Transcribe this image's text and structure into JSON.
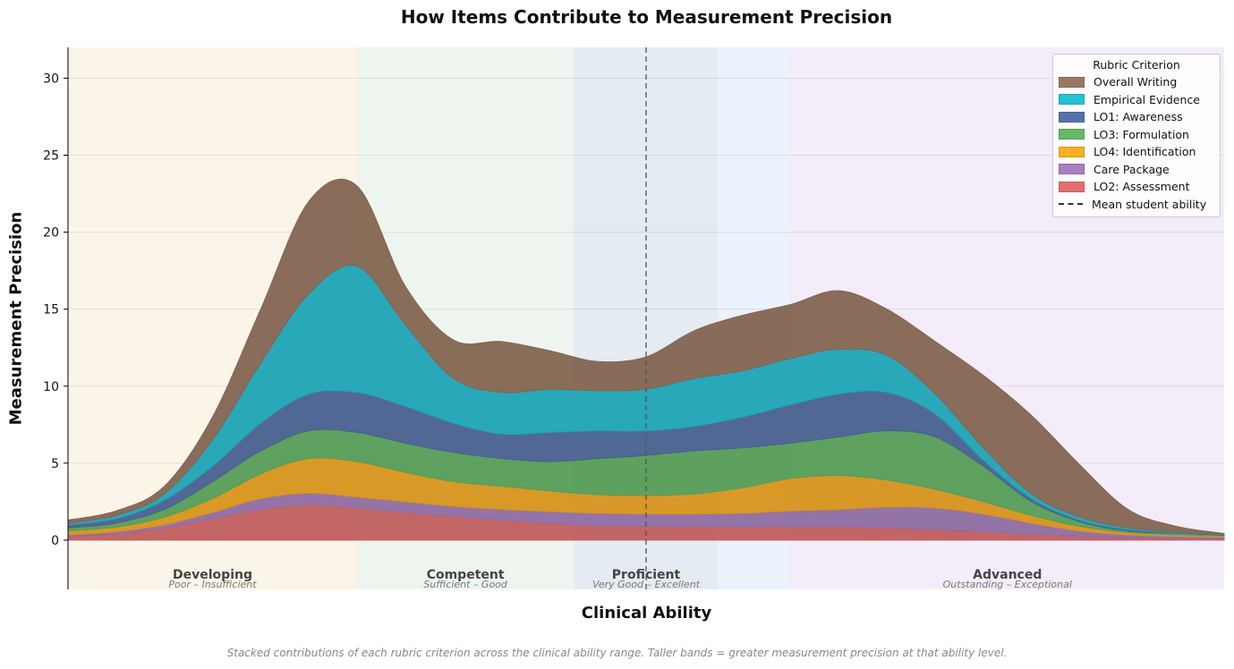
{
  "chart_data": {
    "type": "area",
    "stacked": true,
    "title": "How Items Contribute to Measurement Precision",
    "xlabel": "Clinical Ability",
    "ylabel": "Measurement Precision",
    "caption": "Stacked contributions of each rubric criterion across the clinical ability range. Taller bands = greater measurement precision at that ability level.",
    "ylim": [
      -3.2,
      32
    ],
    "yticks": [
      0,
      5,
      10,
      15,
      20,
      25,
      30
    ],
    "xticks_shown": false,
    "grid": "horizontal",
    "legend": {
      "title": "Rubric Criterion",
      "placement": "top-right",
      "mean_label": "Mean student ability"
    },
    "x": [
      0,
      1,
      2,
      3,
      4,
      5,
      6,
      7,
      8,
      9,
      10,
      11,
      12,
      13,
      14,
      15,
      16,
      17,
      18,
      19,
      20,
      21,
      22,
      23,
      24
    ],
    "mean_student_ability": 12,
    "bands": [
      {
        "label": "Developing",
        "sublabel": "Poor – Insufficient",
        "from": 0,
        "to": 6,
        "color": "#fbf4e8"
      },
      {
        "label": "Competent",
        "sublabel": "Sufficient – Good",
        "from": 6,
        "to": 10.5,
        "color": "#eef5ee"
      },
      {
        "label": "Proficient",
        "sublabel": "Very Good – Excellent",
        "from": 10.5,
        "to": 13.5,
        "color": "#e4ebf2"
      },
      {
        "label": "",
        "sublabel": "",
        "from": 13.5,
        "to": 15,
        "color": "#eaf2fb"
      },
      {
        "label": "Advanced",
        "sublabel": "Outstanding – Exceptional",
        "from": 15,
        "to": 24,
        "color": "#f4ecf8"
      }
    ],
    "series": [
      {
        "name": "LO2: Assessment",
        "color": "#e36f70",
        "values": [
          0.25,
          0.4,
          0.8,
          1.4,
          2.0,
          2.3,
          2.1,
          1.8,
          1.55,
          1.3,
          1.1,
          0.95,
          0.9,
          0.85,
          0.85,
          0.85,
          0.85,
          0.8,
          0.7,
          0.55,
          0.4,
          0.25,
          0.17,
          0.12,
          0.1
        ]
      },
      {
        "name": "Care Package",
        "color": "#a97fc0",
        "values": [
          0.1,
          0.15,
          0.2,
          0.4,
          0.7,
          0.75,
          0.7,
          0.7,
          0.65,
          0.7,
          0.75,
          0.8,
          0.8,
          0.85,
          0.9,
          1.05,
          1.15,
          1.35,
          1.4,
          1.15,
          0.7,
          0.35,
          0.18,
          0.13,
          0.1
        ]
      },
      {
        "name": "LO4: Identification",
        "color": "#fdae21",
        "values": [
          0.25,
          0.3,
          0.5,
          0.9,
          1.6,
          2.25,
          2.3,
          1.9,
          1.6,
          1.5,
          1.35,
          1.2,
          1.2,
          1.3,
          1.65,
          2.1,
          2.2,
          1.75,
          1.2,
          0.8,
          0.5,
          0.3,
          0.15,
          0.1,
          0.07
        ]
      },
      {
        "name": "LO3: Formulation",
        "color": "#66b866",
        "values": [
          0.2,
          0.25,
          0.5,
          1.1,
          1.5,
          1.8,
          1.9,
          1.9,
          1.9,
          1.8,
          1.9,
          2.35,
          2.6,
          2.8,
          2.6,
          2.3,
          2.5,
          3.2,
          3.4,
          2.3,
          0.9,
          0.3,
          0.1,
          0.1,
          0.06
        ]
      },
      {
        "name": "LO1: Awareness",
        "color": "#5572a9",
        "values": [
          0.2,
          0.3,
          0.6,
          1.0,
          1.8,
          2.4,
          2.6,
          2.4,
          1.9,
          1.6,
          1.9,
          1.8,
          1.6,
          1.6,
          2.0,
          2.5,
          2.8,
          2.5,
          1.5,
          0.4,
          0.2,
          0.1,
          0.1,
          0.05,
          0.04
        ]
      },
      {
        "name": "Empirical Evidence",
        "color": "#23c1d6",
        "values": [
          0.1,
          0.2,
          0.4,
          1.7,
          3.9,
          6.5,
          8.2,
          5.3,
          2.9,
          2.7,
          2.8,
          2.6,
          2.7,
          3.1,
          3.0,
          3.0,
          2.9,
          2.4,
          1.3,
          0.8,
          0.3,
          0.2,
          0.1,
          0.05,
          0.03
        ]
      },
      {
        "name": "Overall Writing",
        "color": "#9a7760",
        "values": [
          0.2,
          0.3,
          0.5,
          1.5,
          3.5,
          6.0,
          5.2,
          2.5,
          2.5,
          3.3,
          2.5,
          1.9,
          2.1,
          3.1,
          3.6,
          3.5,
          3.8,
          3.0,
          3.4,
          4.7,
          5.1,
          3.4,
          1.2,
          0.35,
          0.03
        ]
      }
    ]
  }
}
